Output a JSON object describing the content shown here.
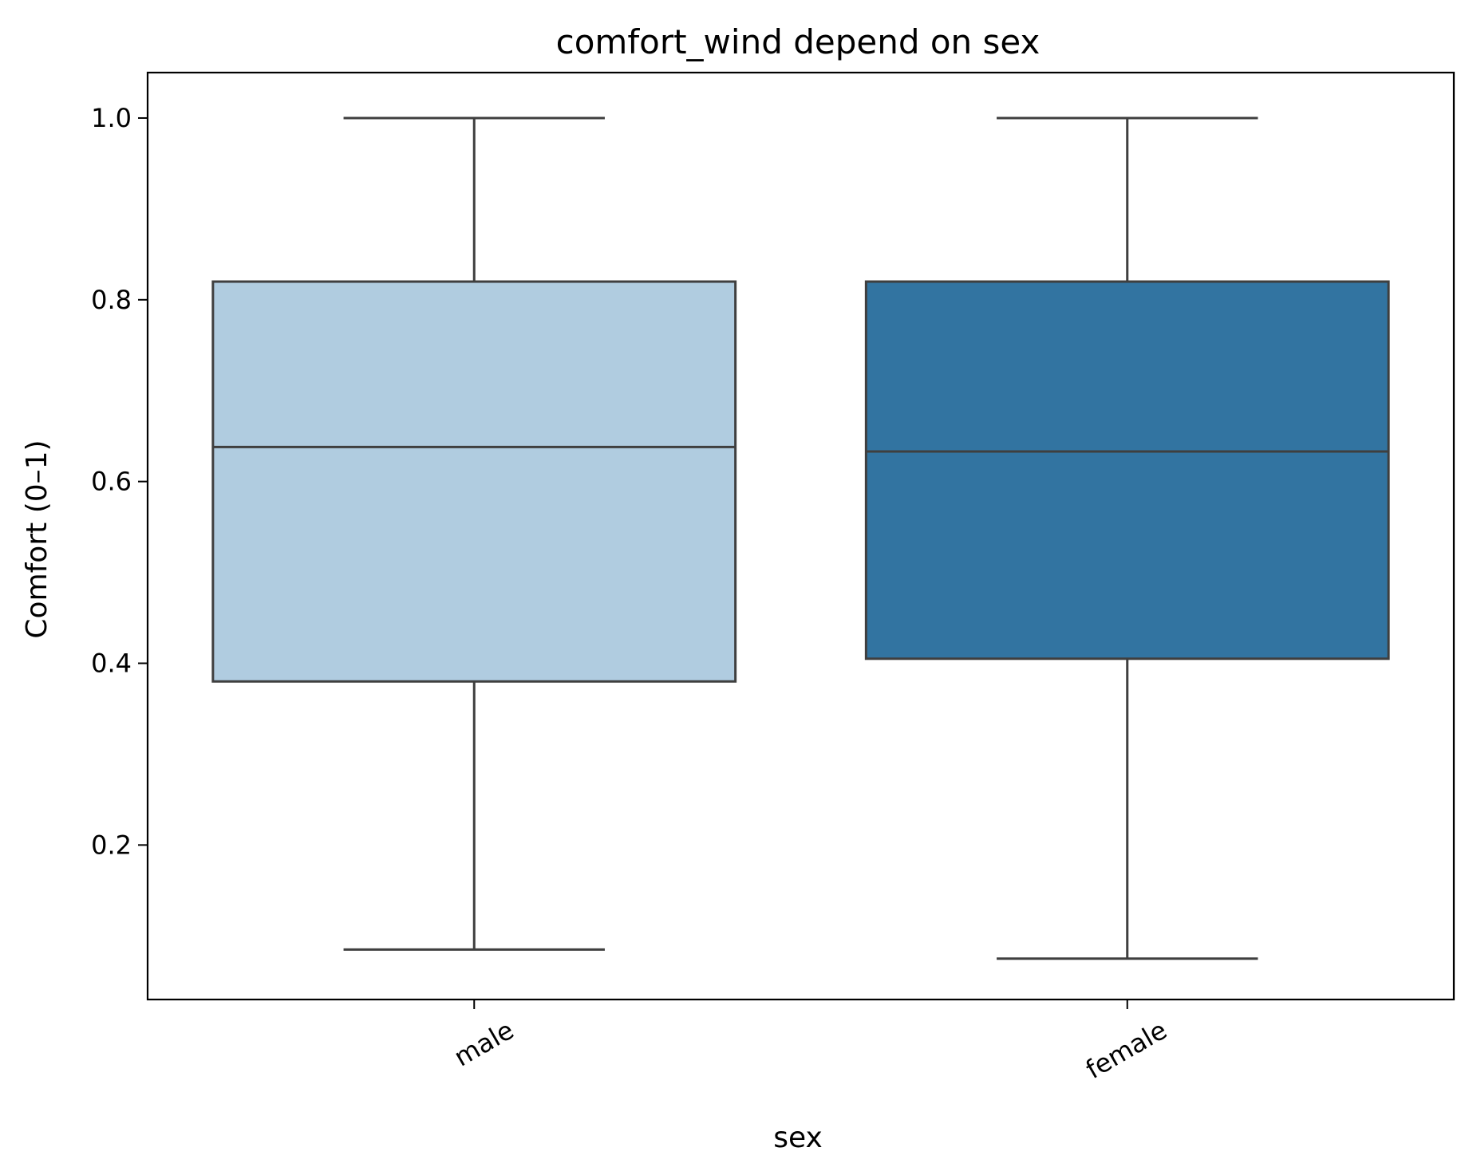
{
  "chart_data": {
    "type": "box",
    "title": "comfort_wind depend on sex",
    "xlabel": "sex",
    "ylabel": "Comfort (0–1)",
    "categories": [
      "male",
      "female"
    ],
    "ylim": [
      0.03,
      1.05
    ],
    "yticks": [
      0.2,
      0.4,
      0.6,
      0.8,
      1.0
    ],
    "ytick_labels": [
      "0.2",
      "0.4",
      "0.6",
      "0.8",
      "1.0"
    ],
    "grid": false,
    "legend": "none",
    "series": [
      {
        "category": "male",
        "whisker_low": 0.085,
        "q1": 0.38,
        "median": 0.638,
        "q3": 0.82,
        "whisker_high": 1.0,
        "color": "#b0cce0"
      },
      {
        "category": "female",
        "whisker_low": 0.075,
        "q1": 0.405,
        "median": 0.633,
        "q3": 0.82,
        "whisker_high": 1.0,
        "color": "#3274a1"
      }
    ],
    "line_color": "#3f3f3f"
  }
}
